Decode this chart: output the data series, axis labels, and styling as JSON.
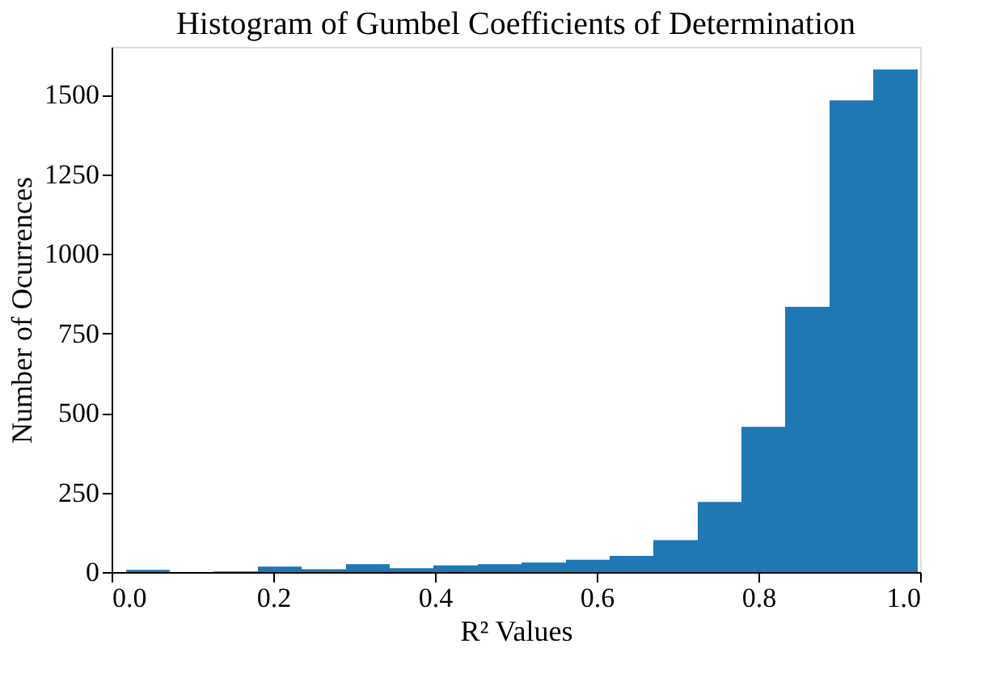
{
  "chart_data": {
    "type": "histogram",
    "title": "Histogram of Gumbel Coefficients of Determination",
    "xlabel": "R² Values",
    "ylabel": "Number of Ocurrences",
    "color": "#1f77b4",
    "bins": [
      0.018,
      0.072,
      0.126,
      0.181,
      0.235,
      0.29,
      0.344,
      0.398,
      0.453,
      0.507,
      0.562,
      0.616,
      0.67,
      0.725,
      0.779,
      0.833,
      0.888,
      0.942,
      0.997
    ],
    "values": [
      7,
      0,
      2,
      17,
      9,
      25,
      12,
      21,
      25,
      30,
      39,
      51,
      100,
      220,
      456,
      833,
      1482,
      1579
    ],
    "xlim": [
      0,
      1
    ],
    "xticks": [
      {
        "value": 0,
        "label": "0.0"
      },
      {
        "value": 0.2,
        "label": "0.2"
      },
      {
        "value": 0.4,
        "label": "0.4"
      },
      {
        "value": 0.6,
        "label": "0.6"
      },
      {
        "value": 0.8,
        "label": "0.8"
      },
      {
        "value": 1,
        "label": "1.0"
      }
    ],
    "ylim": [
      0,
      1650
    ],
    "yticks": [
      0,
      250,
      500,
      750,
      1000,
      1250,
      1500
    ],
    "grid": false
  }
}
